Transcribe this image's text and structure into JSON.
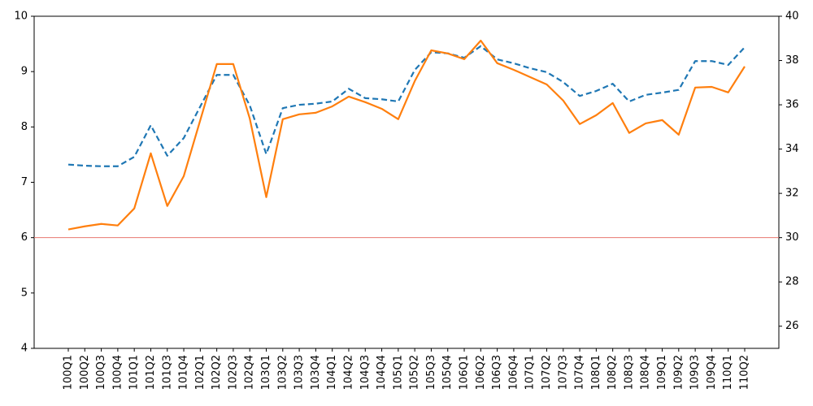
{
  "chart_data": {
    "type": "line",
    "categories": [
      "100Q1",
      "100Q2",
      "100Q3",
      "100Q4",
      "101Q1",
      "101Q2",
      "101Q3",
      "101Q4",
      "102Q1",
      "102Q2",
      "102Q3",
      "102Q4",
      "103Q1",
      "103Q2",
      "103Q3",
      "103Q4",
      "104Q1",
      "104Q2",
      "104Q3",
      "104Q4",
      "105Q1",
      "105Q2",
      "105Q3",
      "105Q4",
      "106Q1",
      "106Q2",
      "106Q3",
      "106Q4",
      "107Q1",
      "107Q2",
      "107Q3",
      "107Q4",
      "108Q1",
      "108Q2",
      "108Q3",
      "108Q4",
      "109Q1",
      "109Q2",
      "109Q3",
      "109Q4",
      "110Q1",
      "110Q2"
    ],
    "series": [
      {
        "color": "#1f77b4",
        "dashed": true,
        "values": [
          7.32,
          7.3,
          7.29,
          7.29,
          7.46,
          8.03,
          7.48,
          7.8,
          8.37,
          8.94,
          8.94,
          8.39,
          7.51,
          8.34,
          8.4,
          8.42,
          8.46,
          8.69,
          8.52,
          8.5,
          8.46,
          9.03,
          9.35,
          9.33,
          9.25,
          9.46,
          9.22,
          9.15,
          9.06,
          8.99,
          8.81,
          8.56,
          8.65,
          8.78,
          8.46,
          8.58,
          8.62,
          8.67,
          9.19,
          9.19,
          9.12,
          9.44
        ]
      },
      {
        "color": "#ff7f0e",
        "axis": "y2",
        "values": [
          30.37,
          30.51,
          30.62,
          30.55,
          31.32,
          33.81,
          31.43,
          32.78,
          35.31,
          37.84,
          37.84,
          35.38,
          31.83,
          35.35,
          35.57,
          35.64,
          35.93,
          36.37,
          36.12,
          35.82,
          35.35,
          37.07,
          38.46,
          38.32,
          38.06,
          38.9,
          37.88,
          37.58,
          37.25,
          36.92,
          36.19,
          35.13,
          35.53,
          36.08,
          34.73,
          35.16,
          35.31,
          34.65,
          36.78,
          36.81,
          36.56,
          37.73
        ]
      }
    ],
    "ylim": [
      4,
      10
    ],
    "yticks": [
      4,
      5,
      6,
      7,
      8,
      9,
      10
    ],
    "y2lim": [
      25,
      40
    ],
    "y2ticks": [
      26,
      28,
      30,
      32,
      34,
      36,
      38,
      40
    ],
    "axhline": {
      "value": 6,
      "color": "#e8776f"
    }
  }
}
